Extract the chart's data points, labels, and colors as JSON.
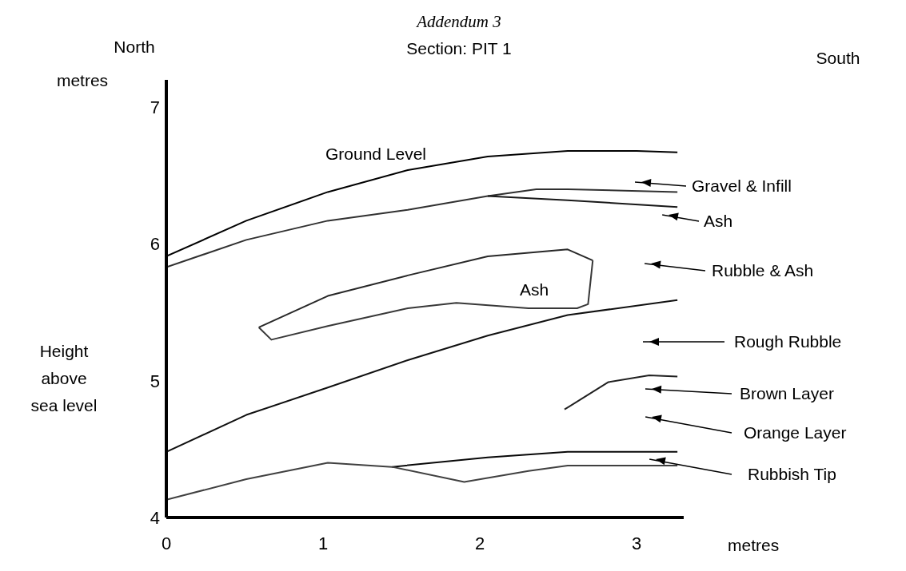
{
  "chart_data": {
    "type": "line",
    "title": "Addendum 3",
    "subtitle": "Section: PIT 1",
    "xlabel": "metres",
    "ylabel": "Height above sea level",
    "xlim": [
      0,
      3.3
    ],
    "xticks": [
      0,
      1,
      2,
      3
    ],
    "ylim": [
      4,
      7.2
    ],
    "yticks": [
      4,
      5,
      6,
      7
    ],
    "grid": false,
    "marker": "none",
    "line_style": "solid",
    "series": [
      {
        "color": "#000000",
        "x": [
          0,
          0.51,
          1.03,
          1.54,
          2.05,
          2.56,
          3.0,
          3.26
        ],
        "values": [
          5.91,
          6.17,
          6.38,
          6.54,
          6.64,
          6.68,
          6.68,
          6.67
        ]
      },
      {
        "color": "#303030",
        "x": [
          0,
          0.51,
          1.03,
          1.54,
          2.05,
          2.36,
          2.56,
          3.26
        ],
        "values": [
          5.83,
          6.03,
          6.17,
          6.25,
          6.35,
          6.4,
          6.4,
          6.38
        ]
      },
      {
        "color": "#181818",
        "x": [
          2.05,
          2.56,
          3.26
        ],
        "values": [
          6.35,
          6.32,
          6.27
        ]
      },
      {
        "color": "#282828",
        "x": [
          0.59,
          1.03,
          1.54,
          2.05,
          2.56,
          2.72
        ],
        "values": [
          5.39,
          5.62,
          5.77,
          5.91,
          5.96,
          5.88
        ]
      },
      {
        "color": "#383838",
        "x": [
          0.59,
          0.67,
          1.03,
          1.54,
          1.85,
          2.31,
          2.62,
          2.69,
          2.72
        ],
        "values": [
          5.39,
          5.3,
          5.4,
          5.53,
          5.57,
          5.53,
          5.53,
          5.56,
          5.88
        ]
      },
      {
        "color": "#101010",
        "x": [
          0,
          0.51,
          1.03,
          1.54,
          2.05,
          2.56,
          3.26
        ],
        "values": [
          4.48,
          4.75,
          4.95,
          5.15,
          5.33,
          5.48,
          5.59
        ]
      },
      {
        "color": "#202020",
        "x": [
          2.54,
          2.82,
          3.08,
          3.26
        ],
        "values": [
          4.79,
          4.99,
          5.04,
          5.03
        ]
      },
      {
        "color": "#080808",
        "x": [
          1.44,
          2.05,
          2.56,
          3.26
        ],
        "values": [
          4.37,
          4.44,
          4.48,
          4.48
        ]
      },
      {
        "color": "#404040",
        "x": [
          0,
          0.51,
          1.03,
          1.44,
          1.9,
          2.31,
          2.56,
          3.0,
          3.26
        ],
        "values": [
          4.13,
          4.28,
          4.4,
          4.37,
          4.26,
          4.34,
          4.38,
          4.38,
          4.38
        ]
      }
    ],
    "annotations": [
      "North",
      "South",
      "metres",
      "Ground Level",
      "Ash",
      "Gravel & Infill",
      "Ash",
      "Rubble & Ash",
      "Rough Rubble",
      "Brown Layer",
      "Orange Layer",
      "Rubbish Tip"
    ]
  }
}
